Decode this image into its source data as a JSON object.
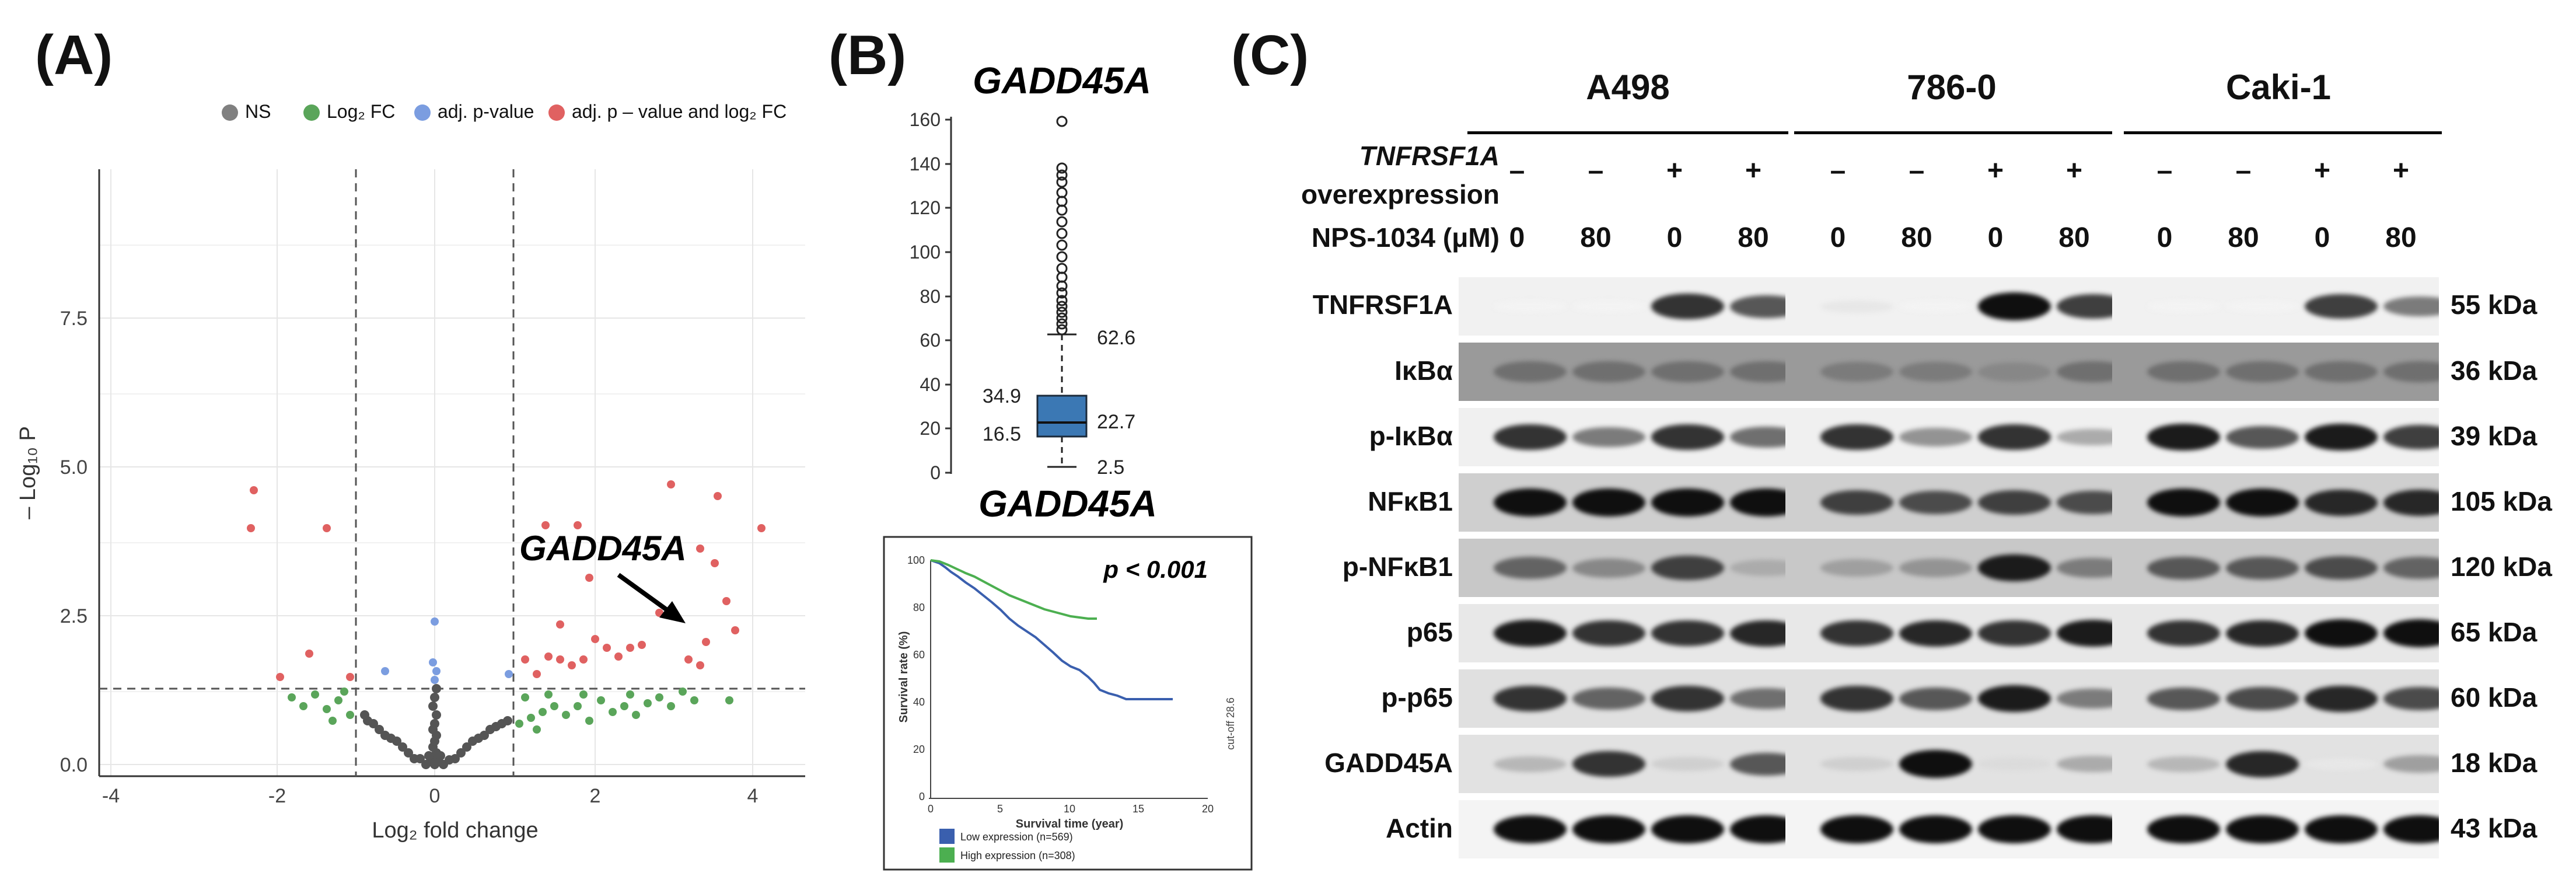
{
  "panels": {
    "a": {
      "letter": "(A)"
    },
    "b": {
      "letter": "(B)"
    },
    "c": {
      "letter": "(C)"
    }
  },
  "volcano": {
    "legend": [
      {
        "label": "NS",
        "color": "#808080"
      },
      {
        "label": "Log₂ FC",
        "color": "#5aa55a"
      },
      {
        "label": "adj. p-value",
        "color": "#7b9de0"
      },
      {
        "label": "adj. p – value and log₂ FC",
        "color": "#e06161"
      }
    ],
    "xlabel": "Log₂ fold change",
    "ylabel": "– Log₁₀ P",
    "annotation": "GADD45A",
    "xticks": [
      "-4",
      "-2",
      "0",
      "2",
      "4"
    ],
    "yticks": [
      "0.0",
      "2.5",
      "5.0",
      "7.5"
    ]
  },
  "boxplot": {
    "title": "GADD45A",
    "yticks": [
      "0",
      "20",
      "40",
      "60",
      "80",
      "100",
      "120",
      "140",
      "160"
    ],
    "labels": {
      "q3": "34.9",
      "q1": "16.5",
      "median": "22.7",
      "upper": "62.6",
      "min": "2.5"
    }
  },
  "survival": {
    "title": "GADD45A",
    "pvalue": "p < 0.001",
    "ylabel": "Survival rate (%)",
    "xlabel": "Survival time (year)",
    "cutoff": "cut-off 28.6",
    "yticks": [
      "0",
      "20",
      "40",
      "60",
      "80",
      "100"
    ],
    "xticks": [
      "0",
      "5",
      "10",
      "15",
      "20"
    ],
    "legend": [
      {
        "label": "Low expression (n=569)",
        "color": "#3a5fae"
      },
      {
        "label": "High expression (n=308)",
        "color": "#4caf50"
      }
    ]
  },
  "western": {
    "cell_lines": [
      "A498",
      "786-0",
      "Caki-1"
    ],
    "condition_label_1": "TNFRSF1A",
    "condition_label_2": "overexpression",
    "dose_label": "NPS-1034 (μM)",
    "oe_values": [
      "–",
      "–",
      "+",
      "+"
    ],
    "dose_values": [
      "0",
      "80",
      "0",
      "80"
    ],
    "rows": [
      {
        "name": "TNFRSF1A",
        "kda": "55 kDa"
      },
      {
        "name": "IκBα",
        "kda": "36 kDa"
      },
      {
        "name": "p-IκBα",
        "kda": "39 kDa"
      },
      {
        "name": "NFκB1",
        "kda": "105 kDa"
      },
      {
        "name": "p-NFκB1",
        "kda": "120 kDa"
      },
      {
        "name": "p65",
        "kda": "65 kDa"
      },
      {
        "name": "p-p65",
        "kda": "60 kDa"
      },
      {
        "name": "GADD45A",
        "kda": "18 kDa"
      },
      {
        "name": "Actin",
        "kda": "43 kDa"
      }
    ]
  }
}
